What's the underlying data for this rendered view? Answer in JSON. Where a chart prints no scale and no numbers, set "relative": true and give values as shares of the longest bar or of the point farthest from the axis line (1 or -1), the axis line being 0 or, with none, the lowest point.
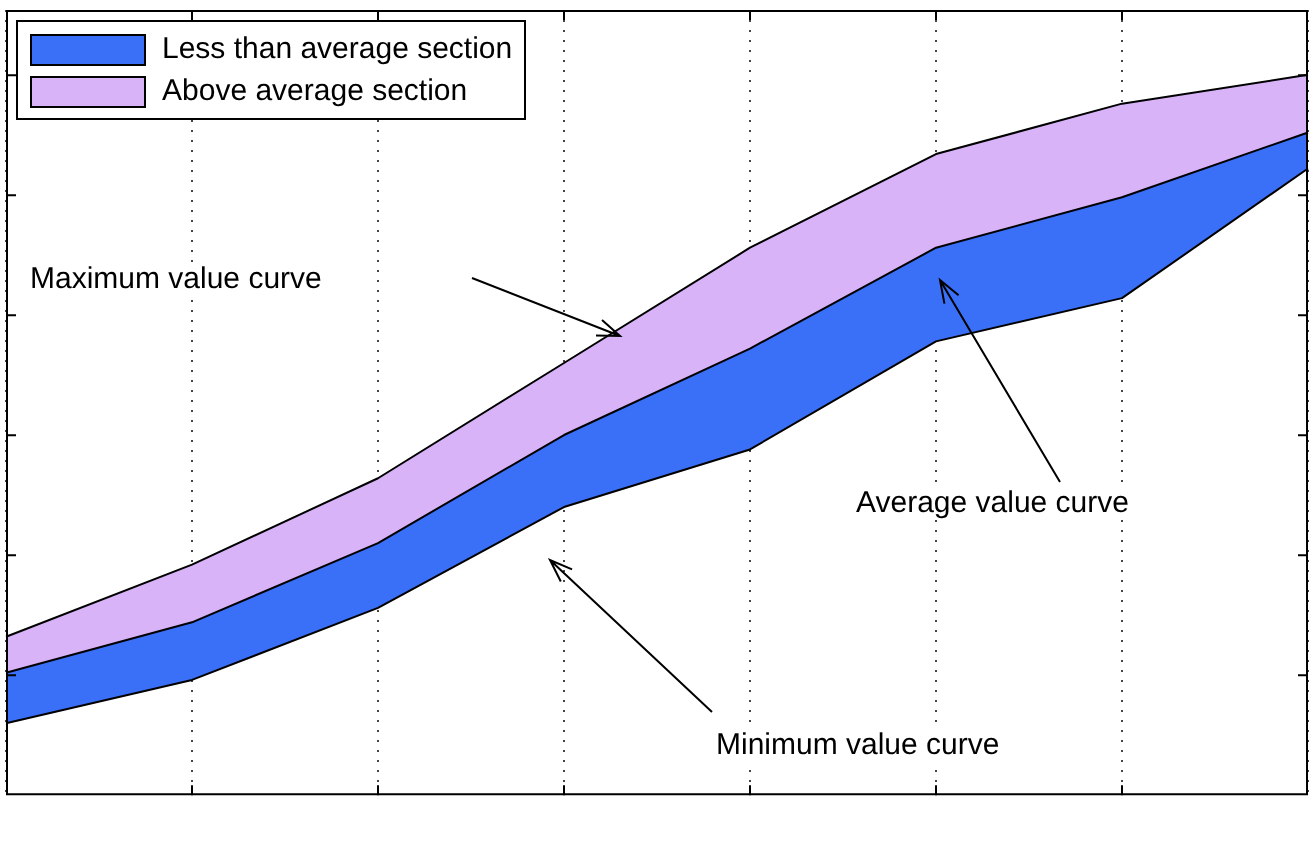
{
  "chart_data": {
    "type": "area",
    "relative": true,
    "categories": [
      null,
      null,
      null,
      null,
      null,
      null,
      null,
      null
    ],
    "grid": "x",
    "legend": "top left",
    "series": [
      {
        "type": "line",
        "color": "#000000",
        "values": [
          0.1,
          0.16,
          0.26,
          0.4,
          0.48,
          0.63,
          0.69,
          0.87
        ]
      },
      {
        "name": "Less than average section",
        "color": "#3a6ff7",
        "values": [
          0.17,
          0.24,
          0.35,
          0.5,
          0.62,
          0.76,
          0.83,
          0.92
        ]
      },
      {
        "name": "Above average section",
        "color": "#d8b3f8",
        "values": [
          0.22,
          0.32,
          0.44,
          0.6,
          0.76,
          0.89,
          0.96,
          1
        ]
      }
    ],
    "annotations": [
      "Maximum value curve",
      "Average value curve",
      "Minimum value curve"
    ]
  }
}
